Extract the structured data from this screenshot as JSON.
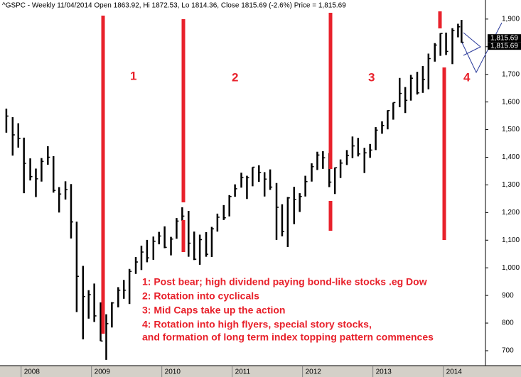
{
  "chart_data": {
    "type": "ohlc",
    "title": "^GSPC - Weekly 11/04/2014 Open 1863.92, Hi 1872.53, Lo 1814.36, Close 1815.69 (-2.6%) Price = 1,815.69",
    "last_price": {
      "value": 1815.69,
      "label": "1,815.69"
    },
    "phase_labels": [
      "1",
      "2",
      "3",
      "4"
    ],
    "annotations": [
      "1: Post bear; high dividend paying bond-like stocks .eg Dow",
      "2: Rotation into cyclicals",
      "3: Mid Caps take up the action",
      "4: Rotation into high flyers, special story stocks,",
      "and formation of long term index topping pattern commences"
    ],
    "color": "#000000",
    "xlim": [
      2007.7,
      2014.6
    ],
    "xticks": [
      2008,
      2009,
      2010,
      2011,
      2012,
      2013,
      2014
    ],
    "ylim": [
      646,
      1969
    ],
    "yticks": [
      {
        "value": 700,
        "label": "700"
      },
      {
        "value": 800,
        "label": "800"
      },
      {
        "value": 900,
        "label": "900"
      },
      {
        "value": 1000,
        "label": "1,000"
      },
      {
        "value": 1100,
        "label": "1,100"
      },
      {
        "value": 1200,
        "label": "1,200"
      },
      {
        "value": 1300,
        "label": "1,300"
      },
      {
        "value": 1400,
        "label": "1,400"
      },
      {
        "value": 1500,
        "label": "1,500"
      },
      {
        "value": 1600,
        "label": "1,600"
      },
      {
        "value": 1700,
        "label": "1,700"
      },
      {
        "value": 1800,
        "label": "1,800"
      },
      {
        "value": 1900,
        "label": "1,900"
      }
    ],
    "x": [
      2007.79,
      2007.88,
      2007.96,
      2008.04,
      2008.13,
      2008.21,
      2008.29,
      2008.38,
      2008.46,
      2008.54,
      2008.63,
      2008.71,
      2008.79,
      2008.88,
      2008.96,
      2009.04,
      2009.13,
      2009.21,
      2009.29,
      2009.38,
      2009.46,
      2009.54,
      2009.63,
      2009.71,
      2009.79,
      2009.88,
      2009.96,
      2010.04,
      2010.13,
      2010.21,
      2010.29,
      2010.38,
      2010.46,
      2010.54,
      2010.63,
      2010.71,
      2010.79,
      2010.88,
      2010.96,
      2011.04,
      2011.13,
      2011.21,
      2011.29,
      2011.38,
      2011.46,
      2011.54,
      2011.63,
      2011.71,
      2011.79,
      2011.88,
      2011.96,
      2012.04,
      2012.13,
      2012.21,
      2012.29,
      2012.38,
      2012.46,
      2012.54,
      2012.63,
      2012.71,
      2012.79,
      2012.88,
      2012.96,
      2013.04,
      2013.13,
      2013.21,
      2013.29,
      2013.38,
      2013.46,
      2013.54,
      2013.63,
      2013.71,
      2013.79,
      2013.88,
      2013.96,
      2014.04,
      2014.13,
      2014.21,
      2014.26
    ],
    "high": [
      1576,
      1545,
      1523,
      1471,
      1396,
      1359,
      1397,
      1440,
      1404,
      1292,
      1313,
      1303,
      1167,
      1007,
      919,
      943,
      875,
      832,
      876,
      930,
      956,
      996,
      1039,
      1080,
      1101,
      1113,
      1130,
      1150,
      1112,
      1180,
      1219,
      1206,
      1131,
      1120,
      1129,
      1148,
      1196,
      1227,
      1263,
      1302,
      1344,
      1333,
      1364,
      1371,
      1346,
      1356,
      1307,
      1230,
      1256,
      1293,
      1270,
      1333,
      1378,
      1420,
      1422,
      1415,
      1363,
      1392,
      1426,
      1475,
      1470,
      1434,
      1448,
      1509,
      1530,
      1570,
      1598,
      1687,
      1654,
      1698,
      1709,
      1730,
      1775,
      1813,
      1849,
      1851,
      1867,
      1883,
      1897
    ],
    "low": [
      1489,
      1406,
      1435,
      1270,
      1316,
      1256,
      1312,
      1373,
      1272,
      1200,
      1247,
      1106,
      840,
      741,
      816,
      804,
      735,
      667,
      784,
      857,
      888,
      869,
      978,
      992,
      1020,
      1029,
      1085,
      1071,
      1045,
      1105,
      1170,
      1040,
      1028,
      1011,
      1040,
      1039,
      1131,
      1173,
      1186,
      1257,
      1290,
      1249,
      1295,
      1311,
      1258,
      1282,
      1101,
      1114,
      1075,
      1158,
      1202,
      1258,
      1312,
      1354,
      1358,
      1292,
      1267,
      1325,
      1372,
      1397,
      1403,
      1343,
      1398,
      1426,
      1485,
      1501,
      1536,
      1581,
      1560,
      1605,
      1627,
      1633,
      1646,
      1746,
      1767,
      1770,
      1737,
      1834,
      1814
    ],
    "close": [
      1549,
      1481,
      1468,
      1378,
      1330,
      1322,
      1385,
      1400,
      1280,
      1267,
      1283,
      1166,
      969,
      896,
      903,
      826,
      735,
      798,
      873,
      919,
      919,
      987,
      1021,
      1057,
      1036,
      1096,
      1115,
      1074,
      1104,
      1169,
      1187,
      1089,
      1031,
      1102,
      1049,
      1141,
      1183,
      1181,
      1258,
      1286,
      1327,
      1326,
      1364,
      1345,
      1321,
      1292,
      1219,
      1131,
      1253,
      1247,
      1258,
      1312,
      1366,
      1408,
      1398,
      1310,
      1362,
      1379,
      1407,
      1441,
      1412,
      1416,
      1426,
      1498,
      1515,
      1569,
      1598,
      1631,
      1606,
      1686,
      1633,
      1682,
      1757,
      1806,
      1848,
      1783,
      1859,
      1872,
      1816
    ]
  }
}
